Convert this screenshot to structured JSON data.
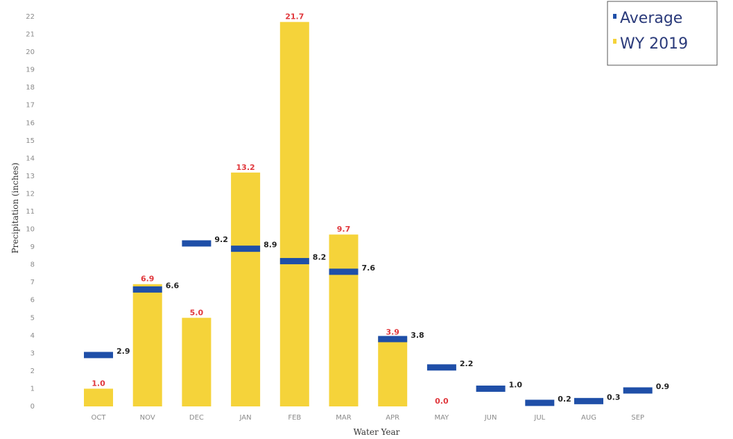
{
  "chart_data": {
    "type": "bar",
    "categories": [
      "OCT",
      "NOV",
      "DEC",
      "JAN",
      "FEB",
      "MAR",
      "APR",
      "MAY",
      "JUN",
      "JUL",
      "AUG",
      "SEP"
    ],
    "series": [
      {
        "name": "WY 2019",
        "values": [
          1.0,
          6.9,
          5.0,
          13.2,
          21.7,
          9.7,
          3.9,
          0.0,
          null,
          null,
          null,
          null
        ],
        "labels": [
          "1.0",
          "6.9",
          "5.0",
          "13.2",
          "21.7",
          "9.7",
          "3.9",
          "0.0",
          "",
          "",
          "",
          ""
        ],
        "color": "#f5d33a"
      },
      {
        "name": "Average",
        "values": [
          2.9,
          6.6,
          9.2,
          8.9,
          8.2,
          7.6,
          3.8,
          2.2,
          1.0,
          0.2,
          0.3,
          0.9
        ],
        "labels": [
          "2.9",
          "6.6",
          "9.2",
          "8.9",
          "8.2",
          "7.6",
          "3.8",
          "2.2",
          "1.0",
          "0.2",
          "0.3",
          "0.9"
        ],
        "color": "#1f4fa8"
      }
    ],
    "xlabel": "Water Year",
    "ylabel": "Precipitation (inches)",
    "ylim": [
      0,
      22
    ],
    "yticks": [
      "0",
      "1",
      "2",
      "3",
      "4",
      "5",
      "6",
      "7",
      "8",
      "9",
      "10",
      "11",
      "12",
      "13",
      "14",
      "15",
      "16",
      "17",
      "18",
      "19",
      "20",
      "21",
      "22"
    ],
    "legend": {
      "placement": "top-right",
      "entries": [
        "Average",
        "WY 2019"
      ]
    },
    "grid": false
  }
}
